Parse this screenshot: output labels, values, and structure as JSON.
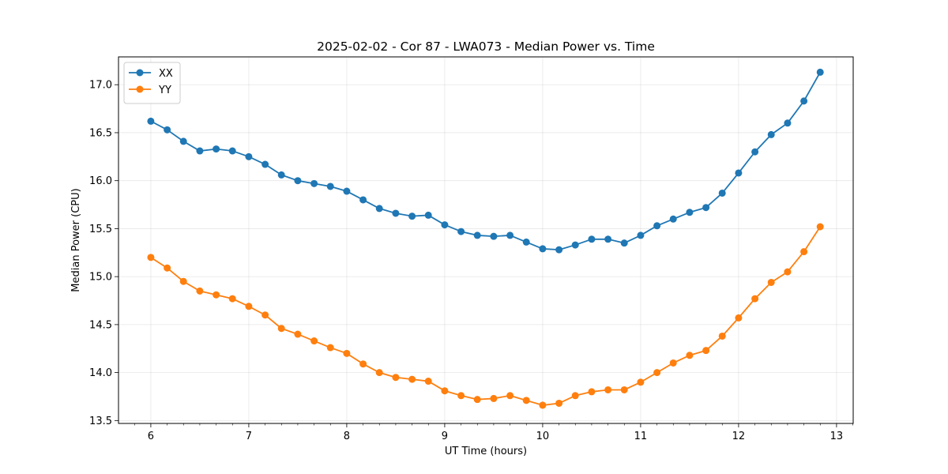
{
  "chart_data": {
    "type": "line",
    "title": "2025-02-02 - Cor 87 - LWA073 - Median Power vs. Time",
    "xlabel": "UT Time (hours)",
    "ylabel": "Median Power (CPU)",
    "xlim": [
      5.67,
      13.17
    ],
    "ylim": [
      13.47,
      17.29
    ],
    "xticks": [
      6,
      7,
      8,
      9,
      10,
      11,
      12,
      13
    ],
    "xtick_labels": [
      "6",
      "7",
      "8",
      "9",
      "10",
      "11",
      "12",
      "13"
    ],
    "yticks": [
      13.5,
      14.0,
      14.5,
      15.0,
      15.5,
      16.0,
      16.5,
      17.0
    ],
    "ytick_labels": [
      "13.5",
      "14.0",
      "14.5",
      "15.0",
      "15.5",
      "16.0",
      "16.5",
      "17.0"
    ],
    "grid": true,
    "legend_position": "top-left",
    "x": [
      6.0,
      6.167,
      6.333,
      6.5,
      6.667,
      6.833,
      7.0,
      7.167,
      7.333,
      7.5,
      7.667,
      7.833,
      8.0,
      8.167,
      8.333,
      8.5,
      8.667,
      8.833,
      9.0,
      9.167,
      9.333,
      9.5,
      9.667,
      9.833,
      10.0,
      10.167,
      10.333,
      10.5,
      10.667,
      10.833,
      11.0,
      11.167,
      11.333,
      11.5,
      11.667,
      11.833,
      12.0,
      12.167,
      12.333,
      12.5,
      12.667,
      12.833
    ],
    "series": [
      {
        "name": "XX",
        "color": "#1f77b4",
        "values": [
          16.62,
          16.53,
          16.41,
          16.31,
          16.33,
          16.31,
          16.25,
          16.17,
          16.06,
          16.0,
          15.97,
          15.94,
          15.89,
          15.8,
          15.71,
          15.66,
          15.63,
          15.64,
          15.54,
          15.47,
          15.43,
          15.42,
          15.43,
          15.36,
          15.29,
          15.28,
          15.33,
          15.39,
          15.39,
          15.35,
          15.43,
          15.53,
          15.6,
          15.67,
          15.72,
          15.87,
          16.08,
          16.3,
          16.48,
          16.6,
          16.83,
          17.13
        ]
      },
      {
        "name": "YY",
        "color": "#ff7f0e",
        "values": [
          15.2,
          15.09,
          14.95,
          14.85,
          14.81,
          14.77,
          14.69,
          14.6,
          14.46,
          14.4,
          14.33,
          14.26,
          14.2,
          14.09,
          14.0,
          13.95,
          13.93,
          13.91,
          13.81,
          13.76,
          13.72,
          13.73,
          13.76,
          13.71,
          13.66,
          13.68,
          13.76,
          13.8,
          13.82,
          13.82,
          13.9,
          14.0,
          14.1,
          14.18,
          14.23,
          14.38,
          14.57,
          14.77,
          14.94,
          15.05,
          15.26,
          15.52
        ]
      }
    ]
  }
}
